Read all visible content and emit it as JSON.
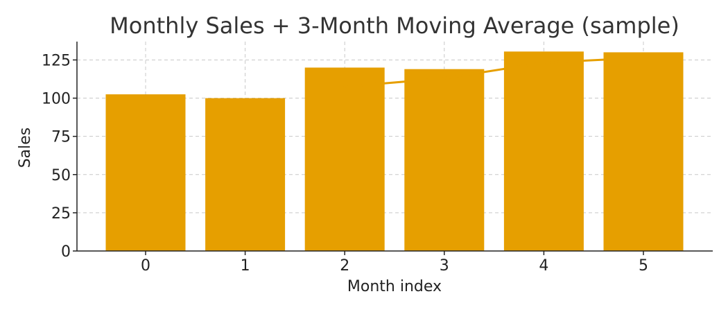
{
  "chart_data": {
    "type": "bar",
    "title": "Monthly Sales + 3-Month Moving Average (sample)",
    "xlabel": "Month index",
    "ylabel": "Sales",
    "categories": [
      "0",
      "1",
      "2",
      "3",
      "4",
      "5"
    ],
    "series": [
      {
        "type": "bar",
        "values": [
          102.5,
          100,
          120,
          119,
          130.5,
          130
        ]
      },
      {
        "type": "line",
        "x": [
          2,
          3,
          4,
          5
        ],
        "values": [
          107.5,
          113,
          123.2,
          126.5
        ]
      }
    ],
    "ylim": [
      0,
      137
    ],
    "yticks": [
      0,
      25,
      50,
      75,
      100,
      125
    ],
    "grid": true,
    "colors": {
      "bar": "#E69F00",
      "line": "#E69F00"
    }
  }
}
